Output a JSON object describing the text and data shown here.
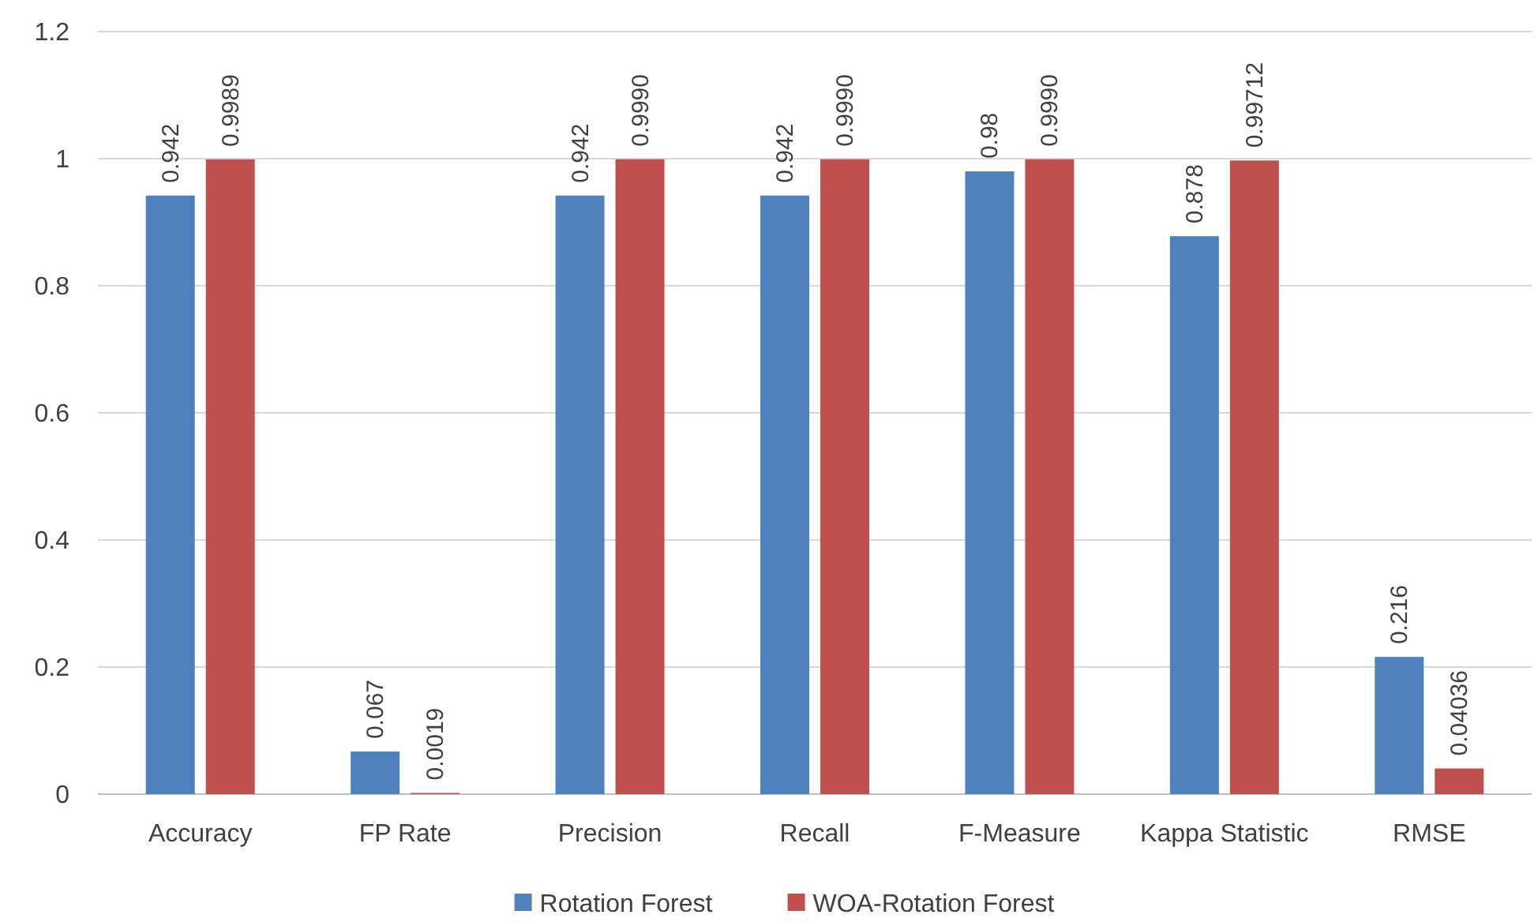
{
  "chart_data": {
    "type": "bar",
    "categories": [
      "Accuracy",
      "FP Rate",
      "Precision",
      "Recall",
      "F-Measure",
      "Kappa Statistic",
      "RMSE"
    ],
    "series": [
      {
        "name": "Rotation Forest",
        "color": "#4f81bd",
        "values": [
          0.942,
          0.067,
          0.942,
          0.942,
          0.98,
          0.878,
          0.216
        ],
        "value_labels": [
          "0.942",
          "0.067",
          "0.942",
          "0.942",
          "0.98",
          "0.878",
          "0.216"
        ]
      },
      {
        "name": "WOA-Rotation Forest",
        "color": "#c0504d",
        "values": [
          0.9989,
          0.0019,
          0.999,
          0.999,
          0.999,
          0.99712,
          0.04036
        ],
        "value_labels": [
          "0.9989",
          "0.0019",
          "0.9990",
          "0.9990",
          "0.9990",
          "0.99712",
          "0.04036"
        ]
      }
    ],
    "ylim": [
      0,
      1.2
    ],
    "yticks": [
      0,
      {
        "value": 0.2,
        "label": "0.2"
      },
      {
        "value": 0.4,
        "label": "0.4"
      },
      {
        "value": 0.6,
        "label": "0.6"
      },
      {
        "value": 0.8,
        "label": "0.8"
      },
      1,
      {
        "value": 1.2,
        "label": "1.2"
      }
    ],
    "grid": "y",
    "legend": "bottom"
  }
}
